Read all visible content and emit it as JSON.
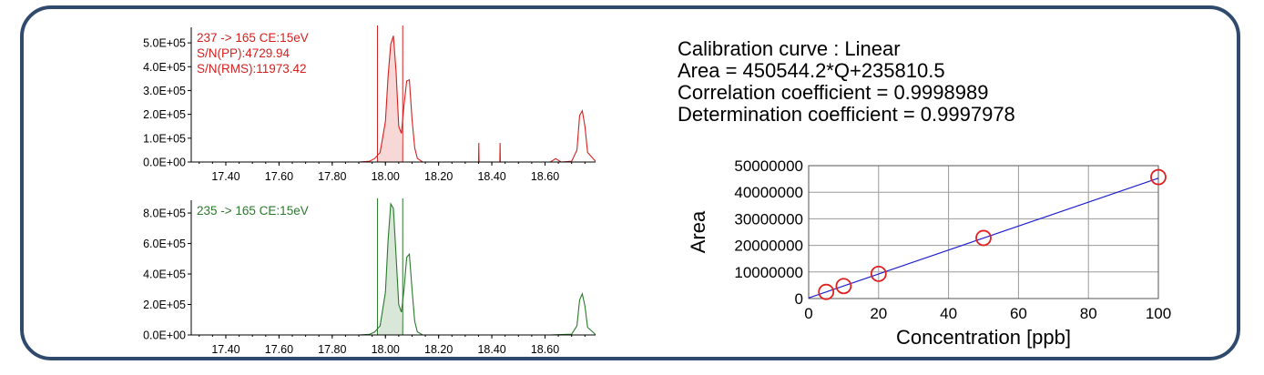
{
  "colors": {
    "frame": "#2f4a6d",
    "trace1": "#d62020",
    "trace2": "#2a7a2a",
    "fit_line": "#1f1fcf",
    "marker": "#e02020"
  },
  "chart_data": [
    {
      "type": "line",
      "title": "",
      "xlabel": "",
      "ylabel": "",
      "annotations": [
        "237 -> 165 CE:15eV",
        "S/N(PP):4729.94",
        "S/N(RMS):11973.42"
      ],
      "xlim": [
        17.27,
        18.79
      ],
      "ylim": [
        0,
        550000
      ],
      "xtick_values": [
        17.4,
        17.6,
        17.8,
        18.0,
        18.2,
        18.4,
        18.6
      ],
      "xtick_labels": [
        "17.40",
        "17.60",
        "17.80",
        "18.00",
        "18.20",
        "18.40",
        "18.60"
      ],
      "ytick_values": [
        0,
        100000,
        200000,
        300000,
        400000,
        500000
      ],
      "ytick_labels": [
        "0.0E+00",
        "1.0E+05",
        "2.0E+05",
        "3.0E+05",
        "4.0E+05",
        "5.0E+05"
      ],
      "integration_window": [
        17.97,
        18.065
      ],
      "series": [
        {
          "x": [
            17.27,
            17.9,
            17.94,
            17.96,
            17.98,
            18.0,
            18.01,
            18.02,
            18.03,
            18.04,
            18.05,
            18.06,
            18.07,
            18.08,
            18.09,
            18.1,
            18.11,
            18.12,
            18.14,
            18.35,
            18.351,
            18.352,
            18.43,
            18.431,
            18.432,
            18.62,
            18.64,
            18.66,
            18.7,
            18.72,
            18.73,
            18.74,
            18.75,
            18.76,
            18.79
          ],
          "y": [
            0,
            0,
            3000,
            15000,
            40000,
            170000,
            360000,
            495000,
            530000,
            380000,
            150000,
            120000,
            240000,
            340000,
            345000,
            180000,
            60000,
            15000,
            0,
            0,
            80000,
            0,
            0,
            80000,
            0,
            0,
            14000,
            0,
            3000,
            50000,
            195000,
            215000,
            150000,
            40000,
            3000
          ]
        }
      ]
    },
    {
      "type": "line",
      "title": "",
      "xlabel": "",
      "ylabel": "",
      "annotations": [
        "235 -> 165 CE:15eV"
      ],
      "xlim": [
        17.27,
        18.79
      ],
      "ylim": [
        0,
        860000
      ],
      "xtick_values": [
        17.4,
        17.6,
        17.8,
        18.0,
        18.2,
        18.4,
        18.6
      ],
      "xtick_labels": [
        "17.40",
        "17.60",
        "17.80",
        "18.00",
        "18.20",
        "18.40",
        "18.60"
      ],
      "ytick_values": [
        0,
        200000,
        400000,
        600000,
        800000
      ],
      "ytick_labels": [
        "0.0E+00",
        "2.0E+05",
        "4.0E+05",
        "6.0E+05",
        "8.0E+05"
      ],
      "integration_window": [
        17.97,
        18.065
      ],
      "series": [
        {
          "x": [
            17.27,
            17.9,
            17.94,
            17.96,
            17.98,
            18.0,
            18.01,
            18.02,
            18.03,
            18.04,
            18.05,
            18.06,
            18.07,
            18.08,
            18.09,
            18.1,
            18.11,
            18.12,
            18.14,
            18.62,
            18.66,
            18.7,
            18.72,
            18.73,
            18.74,
            18.75,
            18.76,
            18.79
          ],
          "y": [
            0,
            0,
            4000,
            20000,
            60000,
            280000,
            620000,
            860000,
            830000,
            520000,
            200000,
            150000,
            300000,
            510000,
            530000,
            300000,
            90000,
            20000,
            0,
            0,
            3000,
            5000,
            60000,
            230000,
            270000,
            190000,
            50000,
            3000
          ]
        }
      ]
    },
    {
      "type": "scatter",
      "title": "",
      "xlabel": "Concentration [ppb]",
      "ylabel": "Area",
      "xlim": [
        0,
        100
      ],
      "ylim": [
        0,
        50000000
      ],
      "xtick_values": [
        0,
        20,
        40,
        60,
        80,
        100
      ],
      "xtick_labels": [
        "0",
        "20",
        "40",
        "60",
        "80",
        "100"
      ],
      "ytick_values": [
        0,
        10000000,
        20000000,
        30000000,
        40000000,
        50000000
      ],
      "ytick_labels": [
        "0",
        "10000000",
        "20000000",
        "30000000",
        "40000000",
        "50000000"
      ],
      "grid": true,
      "points": {
        "x": [
          5,
          10,
          20,
          50,
          100
        ],
        "y": [
          2500000,
          4700000,
          9300000,
          22800000,
          45700000
        ]
      },
      "fit_line": {
        "slope": 450544.2,
        "intercept": 235810.5
      }
    }
  ],
  "calibration_info": {
    "line1": "Calibration curve : Linear",
    "line2": "Area = 450544.2*Q+235810.5",
    "line3": "Correlation coefficient = 0.9998989",
    "line4": "Determination coefficient = 0.9997978"
  }
}
